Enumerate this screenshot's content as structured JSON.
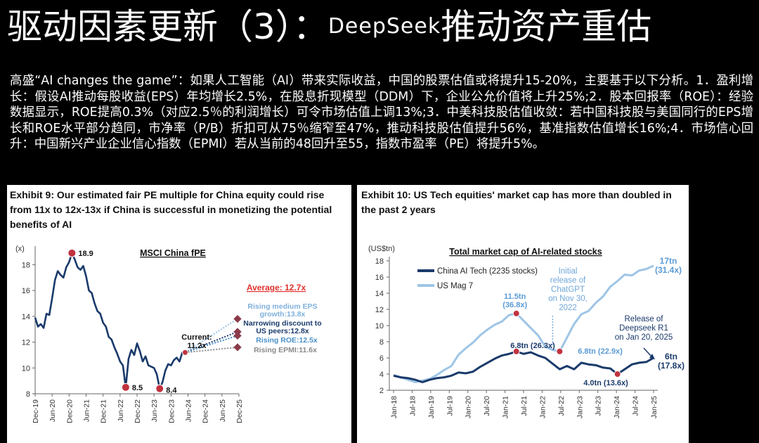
{
  "page": {
    "title_prefix": "驱动因素更新（3）：",
    "title_brand": "DeepSeek",
    "title_suffix": "推动资产重估",
    "summary": "高盛“AI changes the game”：如果人工智能（AI）带来实际收益，中国的股票估值或将提升15-20%，主要基于以下分析。1．盈利增长：假设AI推动每股收益(EPS）年均增长2.5%，在股息折现模型（DDM）下，企业公允价值将上升25%;2．股本回报率（ROE）：经验数据显示，ROE提高0.3%（对应2.5％的利润增长）可令市场估值上调13%;3．中美科技股估值收敛：若中国科技股与美国同行的EPS增长和ROE水平部分趋同，市净率（P/B）折扣可从75％缩窄至47%，推动科技股估值提升56%，基准指数估值增长16%;4．市场信心回升：中国新兴产业企业信心指数（EPMI）若从当前的48回升至55，指数市盈率（PE）将提升5%。"
  },
  "chart_data": [
    {
      "type": "line",
      "exhibit_title": "Exhibit 9: Our estimated fair PE multiple for China equity could rise from 11x to 12x-13x if China is successful in monetizing the potential benefits of AI",
      "title": "MSCI China fPE",
      "ylabel": "(x)",
      "ylim": [
        8,
        19
      ],
      "yticks": [
        8,
        10,
        12,
        14,
        16,
        18
      ],
      "x_ticks": [
        "Dec-19",
        "Jun-20",
        "Dec-20",
        "Jun-21",
        "Dec-21",
        "Jun-22",
        "Dec-22",
        "Jun-23",
        "Dec-23",
        "Jun-24",
        "Dec-24",
        "Jun-25",
        "Dec-25"
      ],
      "grid": false,
      "legend": "none",
      "series_color": "#1a3a6b",
      "series": [
        {
          "values": [
            13.9,
            13.2,
            13.4,
            13.1,
            14.2,
            14.1,
            15.4,
            16.8,
            17.5,
            17.2,
            17.0,
            17.8,
            18.2,
            18.9,
            18.4,
            17.8,
            17.6,
            17.9,
            17.1,
            16.0,
            15.8,
            15.0,
            14.4,
            14.2,
            13.5,
            13.2,
            12.4,
            12.2,
            11.6,
            11.1,
            10.5,
            10.2,
            8.5,
            10.7,
            11.4,
            11.0,
            11.9,
            11.3,
            10.5,
            10.9,
            10.2,
            10.1,
            10.0,
            9.5,
            8.4,
            8.9,
            9.8,
            10.3,
            10.2,
            10.6,
            10.8,
            10.5,
            11.2,
            11.2
          ],
          "start_month": "Dec-19",
          "end_month": "Apr-24"
        }
      ],
      "average_label": "Average: 12.7x",
      "average": 12.7,
      "annotations": {
        "max": "18.9",
        "min1": "8.5",
        "min2": "8.4",
        "current": "Current:\n11.2x"
      },
      "scenarios": [
        {
          "label": "Rising medium EPS growth:13.8x",
          "value": 13.8,
          "color": "#9ec5e6"
        },
        {
          "label": "Narrowing discount to US peers:12.8x",
          "value": 12.8,
          "color": "#1a3a6b"
        },
        {
          "label": "Rising ROE:12.5x",
          "value": 12.5,
          "color": "#4a90c8"
        },
        {
          "label": "Rising EPMI:11.6x",
          "value": 11.6,
          "color": "#8a8a8a"
        }
      ]
    },
    {
      "type": "line",
      "exhibit_title": "Exhibit 10: US Tech equities' market cap has more than doubled in the past 2 years",
      "title": "Total market cap of AI-related stocks",
      "ylabel": "(US$tn)",
      "ylim": [
        2,
        18
      ],
      "yticks": [
        2,
        4,
        6,
        8,
        10,
        12,
        14,
        16,
        18
      ],
      "x_ticks": [
        "Jan-18",
        "Jul-18",
        "Jan-19",
        "Jul-19",
        "Jan-20",
        "Jul-20",
        "Jan-21",
        "Jul-21",
        "Jan-22",
        "Jul-22",
        "Jan-23",
        "Jul-23",
        "Jan-24",
        "Jul-24",
        "Jan-25"
      ],
      "grid": false,
      "legend": "top-left",
      "series": [
        {
          "name": "China AI Tech (2235 stocks)",
          "color": "#1a3a6b",
          "values": [
            3.8,
            3.6,
            3.5,
            3.3,
            3.0,
            3.3,
            3.5,
            3.6,
            3.8,
            4.2,
            4.1,
            4.3,
            4.9,
            5.4,
            5.9,
            6.3,
            6.5,
            6.8,
            6.5,
            6.7,
            6.3,
            6.0,
            5.3,
            4.6,
            5.0,
            4.6,
            5.4,
            5.2,
            5.1,
            4.8,
            4.7,
            4.0,
            4.6,
            5.2,
            5.4,
            5.5,
            6.0
          ],
          "start_month": "Jan-18",
          "end_month": "Jan-25"
        },
        {
          "name": "US Mag 7",
          "color": "#9ec5e6",
          "values": [
            3.9,
            3.6,
            3.3,
            3.0,
            3.2,
            3.4,
            3.9,
            4.5,
            5.0,
            6.4,
            7.2,
            7.9,
            8.8,
            9.5,
            10.1,
            10.5,
            11.3,
            11.5,
            10.6,
            9.7,
            8.8,
            7.4,
            7.0,
            6.8,
            8.5,
            10.2,
            11.4,
            11.8,
            12.8,
            13.6,
            14.8,
            15.5,
            16.3,
            16.2,
            16.8,
            17.0,
            17.4
          ],
          "start_month": "Jan-18",
          "end_month": "Jan-25"
        }
      ],
      "annotations": {
        "chatgpt": "Initial release of ChatGPT on Nov 30, 2022",
        "deepseek": "Release of Deepseek R1 on Jan 20, 2025",
        "us_peak_2021": "11.5tn (36.8x)",
        "cn_peak_2021": "6.8tn (26.3x)",
        "us_2022": "6.8tn (22.9x)",
        "cn_low_2024": "4.0tn (13.6x)",
        "us_end": "17tn (31.4x)",
        "cn_end": "6tn (17.8x)"
      }
    }
  ]
}
